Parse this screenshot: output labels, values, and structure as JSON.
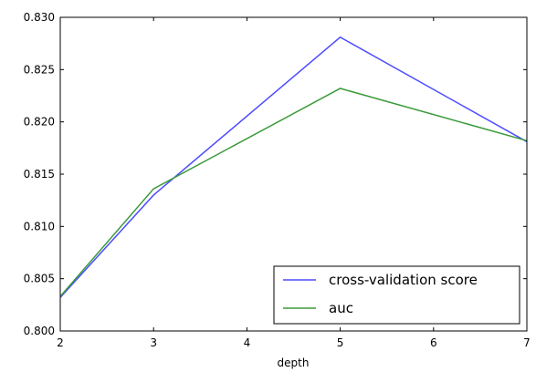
{
  "chart_data": {
    "type": "line",
    "title": "",
    "xlabel": "depth",
    "ylabel": "",
    "xlim": [
      2,
      7
    ],
    "ylim": [
      0.8,
      0.83
    ],
    "x_ticks": [
      "2",
      "3",
      "4",
      "5",
      "6",
      "7"
    ],
    "y_ticks": [
      "0.800",
      "0.805",
      "0.810",
      "0.815",
      "0.820",
      "0.825",
      "0.830"
    ],
    "x": [
      2,
      3,
      5,
      7
    ],
    "series": [
      {
        "name": "cross-validation score",
        "color": "#4c4cff",
        "values": [
          0.8032,
          0.813,
          0.8281,
          0.8181
        ]
      },
      {
        "name": "auc",
        "color": "#3a9a3a",
        "values": [
          0.8033,
          0.8136,
          0.8232,
          0.8182
        ]
      }
    ],
    "legend": "lower-right",
    "grid": false
  }
}
